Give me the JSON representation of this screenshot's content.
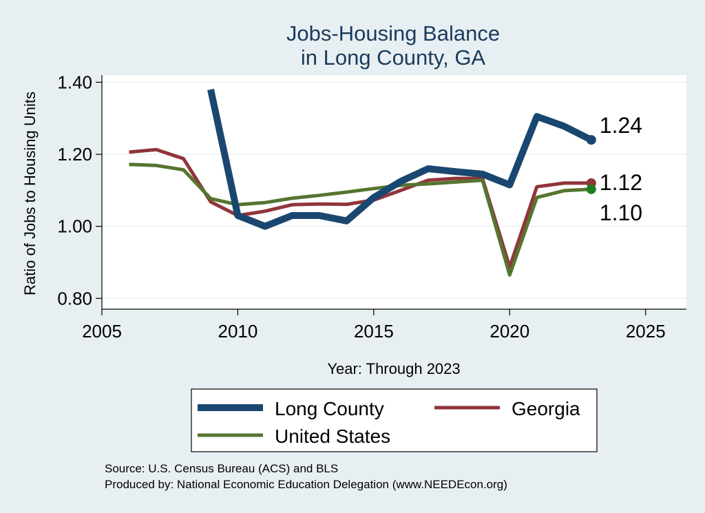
{
  "chart_data": {
    "type": "line",
    "title": [
      "Jobs-Housing Balance",
      "in Long County, GA"
    ],
    "xlabel": "Year: Through 2023",
    "ylabel": "Ratio of Jobs to Housing Units",
    "xlim": [
      2005,
      2026.5
    ],
    "ylim": [
      0.77,
      1.42
    ],
    "xticks": [
      2005,
      2010,
      2015,
      2020,
      2025
    ],
    "yticks": [
      0.8,
      1.0,
      1.2,
      1.4
    ],
    "ytick_labels": [
      "0.80",
      "1.00",
      "1.20",
      "1.40"
    ],
    "grid": true,
    "series": [
      {
        "name": "Long County",
        "color": "#1a476f",
        "x": [
          2009,
          2010,
          2011,
          2012,
          2013,
          2014,
          2015,
          2016,
          2017,
          2018,
          2019,
          2020,
          2021,
          2022,
          2023
        ],
        "y": [
          1.38,
          1.03,
          1.0,
          1.03,
          1.03,
          1.015,
          1.08,
          1.125,
          1.16,
          1.152,
          1.145,
          1.115,
          1.305,
          1.278,
          1.24
        ],
        "end_label": "1.24"
      },
      {
        "name": "Georgia",
        "color": "#90353b",
        "x": [
          2006,
          2007,
          2008,
          2009,
          2010,
          2011,
          2012,
          2013,
          2014,
          2015,
          2016,
          2017,
          2018,
          2019,
          2020,
          2021,
          2022,
          2023
        ],
        "y": [
          1.206,
          1.213,
          1.188,
          1.068,
          1.03,
          1.042,
          1.06,
          1.062,
          1.061,
          1.073,
          1.1,
          1.128,
          1.133,
          1.133,
          0.887,
          1.11,
          1.12,
          1.12
        ],
        "end_label": "1.12"
      },
      {
        "name": "United States",
        "color": "#55752f",
        "x": [
          2006,
          2007,
          2008,
          2009,
          2010,
          2011,
          2012,
          2013,
          2014,
          2015,
          2016,
          2017,
          2018,
          2019,
          2020,
          2021,
          2022,
          2023
        ],
        "y": [
          1.172,
          1.169,
          1.157,
          1.077,
          1.06,
          1.066,
          1.078,
          1.086,
          1.095,
          1.105,
          1.114,
          1.118,
          1.123,
          1.128,
          0.865,
          1.08,
          1.099,
          1.103
        ],
        "end_label": "1.10"
      }
    ],
    "legend_position": "bottom"
  },
  "source": {
    "line1": "Source: U.S. Census Bureau (ACS) and BLS",
    "line2": "Produced by: National Economic Education Delegation (www.NEEDEcon.org)"
  }
}
